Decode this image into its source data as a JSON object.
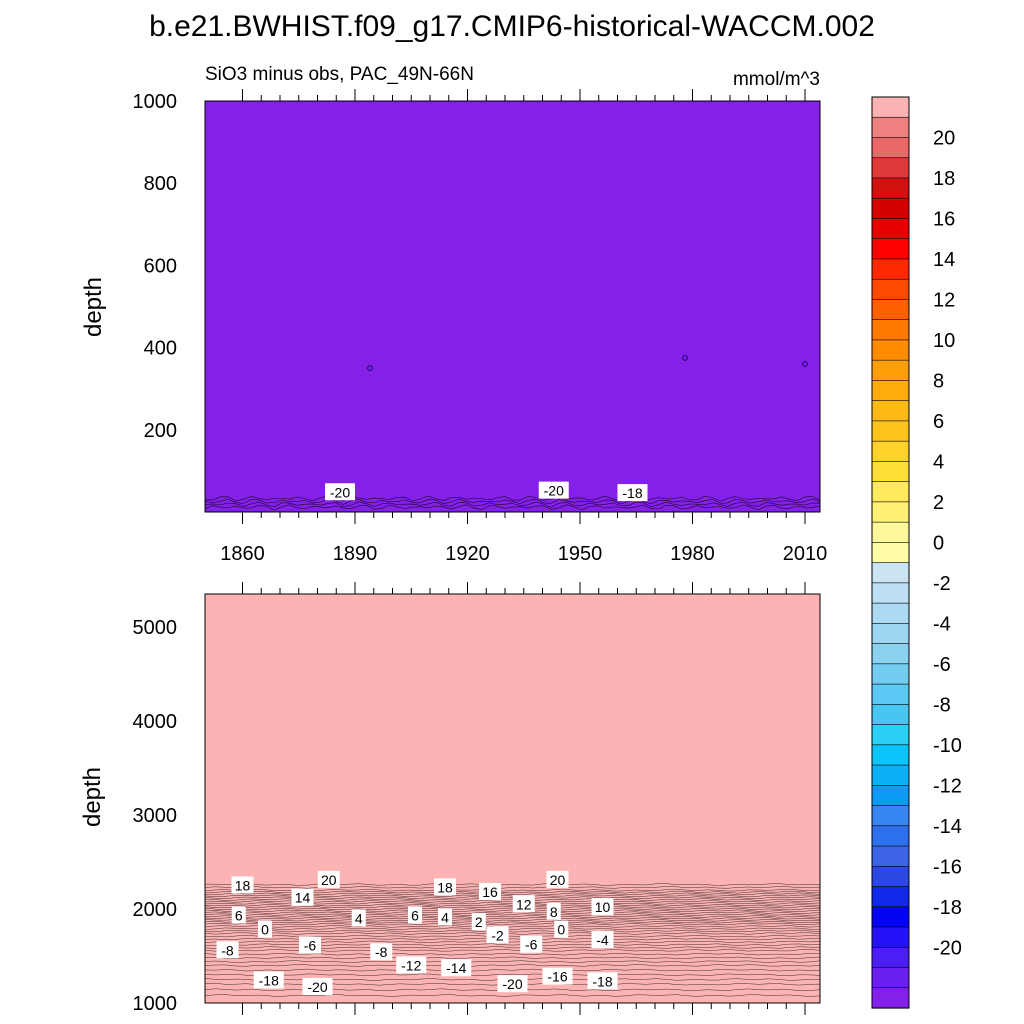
{
  "chart_data": {
    "type": "contour",
    "title": "b.e21.BWHIST.f09_g17.CMIP6-historical-WACCM.002",
    "subtitle_left": "SiO3 minus obs, PAC_49N-66N",
    "units": "mmol/m^3",
    "colorbar": {
      "levels": [
        -21,
        -20,
        -19,
        -18,
        -17,
        -16,
        -15,
        -14,
        -13,
        -12,
        -11,
        -10,
        -9,
        -8,
        -7,
        -6,
        -5,
        -4,
        -3,
        -2,
        -1,
        0,
        1,
        2,
        3,
        4,
        5,
        6,
        7,
        8,
        9,
        10,
        11,
        12,
        13,
        14,
        15,
        16,
        17,
        18,
        19,
        20,
        21
      ],
      "colors": [
        "#8420e8",
        "#6a1ff0",
        "#4a1ef5",
        "#2412f8",
        "#0404f5",
        "#1028e8",
        "#2c48e0",
        "#3c64e4",
        "#2d70ee",
        "#3686f2",
        "#0c9af5",
        "#0cb0f6",
        "#0ac4fa",
        "#2ad0f6",
        "#48c6f2",
        "#5cc8f4",
        "#72cdf0",
        "#8ad2f0",
        "#9cd6f0",
        "#acdaf2",
        "#bcdff4",
        "#cae4f4",
        "#fffca8",
        "#fff89a",
        "#fff076",
        "#ffea5c",
        "#ffde38",
        "#ffd12a",
        "#ffc41a",
        "#ffb814",
        "#ffab0c",
        "#ff9e08",
        "#ff8c00",
        "#ff7800",
        "#ff6000",
        "#ff4800",
        "#ff2800",
        "#ff0000",
        "#e60000",
        "#d40000",
        "#d21010",
        "#e03838",
        "#ec6868",
        "#f08080",
        "#fbb3b3"
      ],
      "labels": [
        "-20",
        "-18",
        "-16",
        "-14",
        "-12",
        "-10",
        "-8",
        "-6",
        "-4",
        "-2",
        "0",
        "2",
        "4",
        "6",
        "8",
        "10",
        "12",
        "14",
        "16",
        "18",
        "20"
      ]
    },
    "panels": [
      {
        "name": "upper",
        "xlabel": "",
        "ylabel": "depth",
        "xlim": [
          1850,
          2014
        ],
        "ylim": [
          1000,
          0
        ],
        "xticks": [
          "1860",
          "1890",
          "1920",
          "1950",
          "1980",
          "2010"
        ],
        "yticks": [
          "200",
          "400",
          "600",
          "800",
          "1000"
        ],
        "bg_value": -21,
        "contour_labels": [
          {
            "text": "-20",
            "x": 1886,
            "y": 48
          },
          {
            "text": "-20",
            "x": 1943,
            "y": 52
          },
          {
            "text": "-18",
            "x": 1964,
            "y": 46
          }
        ]
      },
      {
        "name": "lower",
        "xlabel": "",
        "ylabel": "depth",
        "xlim": [
          1850,
          2014
        ],
        "ylim": [
          5350,
          1000
        ],
        "yticks": [
          "1000",
          "2000",
          "3000",
          "4000",
          "5000"
        ],
        "bg_value": 21,
        "profile": [
          [
            1000,
            -21
          ],
          [
            1080,
            -20
          ],
          [
            1200,
            -18
          ],
          [
            1300,
            -16
          ],
          [
            1400,
            -14
          ],
          [
            1480,
            -12
          ],
          [
            1560,
            -10
          ],
          [
            1620,
            -8
          ],
          [
            1680,
            -6
          ],
          [
            1740,
            -4
          ],
          [
            1790,
            -2
          ],
          [
            1840,
            0
          ],
          [
            1880,
            2
          ],
          [
            1920,
            4
          ],
          [
            1960,
            6
          ],
          [
            2000,
            8
          ],
          [
            2040,
            10
          ],
          [
            2080,
            12
          ],
          [
            2120,
            14
          ],
          [
            2160,
            16
          ],
          [
            2200,
            18
          ],
          [
            2260,
            20
          ],
          [
            2350,
            21
          ]
        ],
        "contour_labels": [
          {
            "text": "-18",
            "x": 1867,
            "y": 1240
          },
          {
            "text": "-20",
            "x": 1880,
            "y": 1170
          },
          {
            "text": "-8",
            "x": 1856,
            "y": 1560
          },
          {
            "text": "-6",
            "x": 1878,
            "y": 1610
          },
          {
            "text": "-8",
            "x": 1897,
            "y": 1540
          },
          {
            "text": "-12",
            "x": 1905,
            "y": 1400
          },
          {
            "text": "-14",
            "x": 1917,
            "y": 1370
          },
          {
            "text": "-20",
            "x": 1932,
            "y": 1200
          },
          {
            "text": "-16",
            "x": 1944,
            "y": 1280
          },
          {
            "text": "-18",
            "x": 1956,
            "y": 1230
          },
          {
            "text": "-6",
            "x": 1937,
            "y": 1620
          },
          {
            "text": "-2",
            "x": 1928,
            "y": 1720
          },
          {
            "text": "-4",
            "x": 1956,
            "y": 1670
          },
          {
            "text": "0",
            "x": 1866,
            "y": 1780
          },
          {
            "text": "0",
            "x": 1945,
            "y": 1780
          },
          {
            "text": "6",
            "x": 1859,
            "y": 1930
          },
          {
            "text": "4",
            "x": 1891,
            "y": 1900
          },
          {
            "text": "6",
            "x": 1906,
            "y": 1930
          },
          {
            "text": "4",
            "x": 1914,
            "y": 1910
          },
          {
            "text": "2",
            "x": 1923,
            "y": 1860
          },
          {
            "text": "8",
            "x": 1943,
            "y": 1970
          },
          {
            "text": "10",
            "x": 1956,
            "y": 2020
          },
          {
            "text": "12",
            "x": 1935,
            "y": 2050
          },
          {
            "text": "14",
            "x": 1876,
            "y": 2120
          },
          {
            "text": "16",
            "x": 1926,
            "y": 2180
          },
          {
            "text": "18",
            "x": 1860,
            "y": 2250
          },
          {
            "text": "18",
            "x": 1914,
            "y": 2230
          },
          {
            "text": "20",
            "x": 1883,
            "y": 2310
          },
          {
            "text": "20",
            "x": 1944,
            "y": 2310
          }
        ]
      }
    ]
  }
}
